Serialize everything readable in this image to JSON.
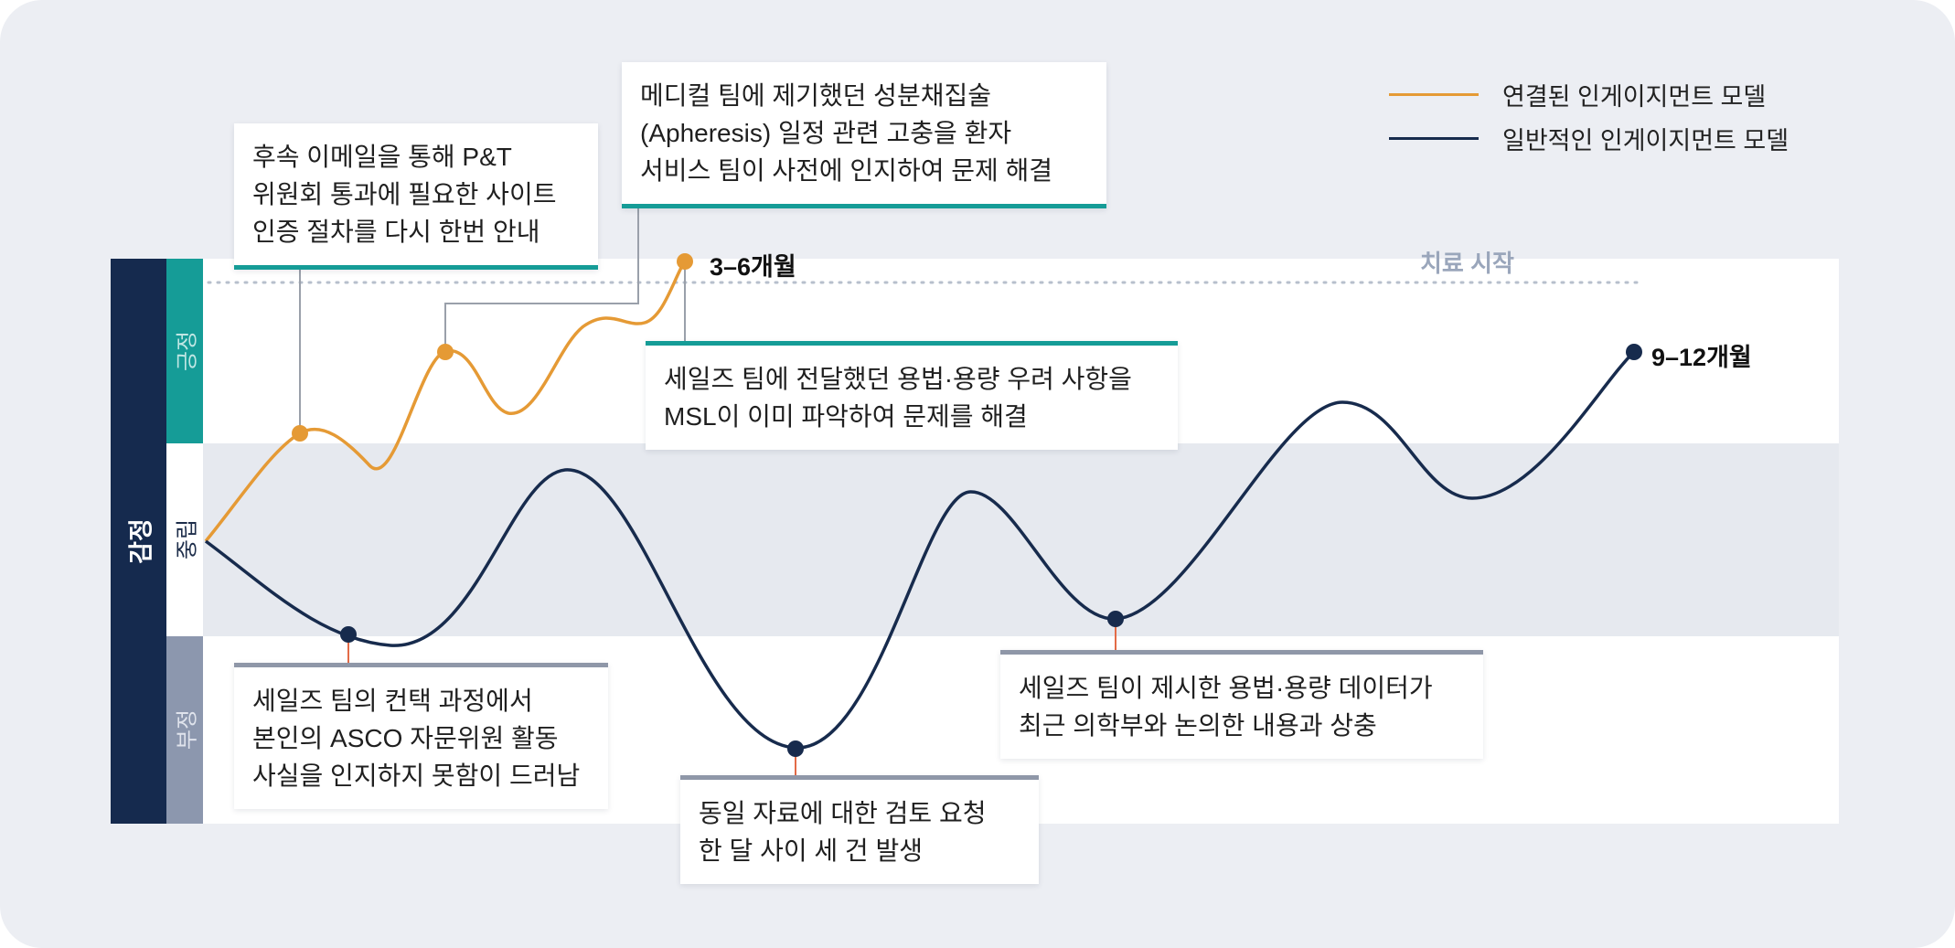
{
  "legend": {
    "connected": {
      "label": "연결된 인게이지먼트 모델",
      "color": "#e59a35"
    },
    "general": {
      "label": "일반적인 인게이지먼트 모델",
      "color": "#172b4d"
    }
  },
  "axis": {
    "emotion": "감정",
    "positive": "긍정",
    "neutral": "중립",
    "negative": "부정"
  },
  "treatment_start": "치료 시작",
  "endpoints": {
    "connected": "3–6개월",
    "general": "9–12개월"
  },
  "callouts": {
    "followup_email": [
      "후속 이메일을 통해 P&T",
      "위원회 통과에 필요한 사이트",
      "인증 절차를 다시 한번 안내"
    ],
    "apheresis": [
      "메디컬 팀에 제기했던 성분채집술",
      "(Apheresis) 일정 관련 고충을 환자",
      "서비스 팀이 사전에 인지하여 문제 해결"
    ],
    "dosage_msl": [
      "세일즈 팀에 전달했던 용법·용량 우려 사항을",
      "MSL이 이미 파악하여 문제를 해결"
    ],
    "asco": [
      "세일즈 팀의 컨택 과정에서",
      "본인의 ASCO 자문위원 활동",
      "사실을 인지하지 못함이 드러남"
    ],
    "duplicate_review": [
      "동일 자료에 대한 검토 요청",
      "한 달 사이 세 건 발생"
    ],
    "dosage_conflict": [
      "세일즈 팀이 제시한 용법·용량 데이터가",
      "최근 의학부와 논의한 내용과 상충"
    ]
  },
  "colors": {
    "positive_band": "#159c97",
    "negative_band": "#8c97ae",
    "axis_dark": "#152a4e",
    "connector": "#e36b47"
  }
}
